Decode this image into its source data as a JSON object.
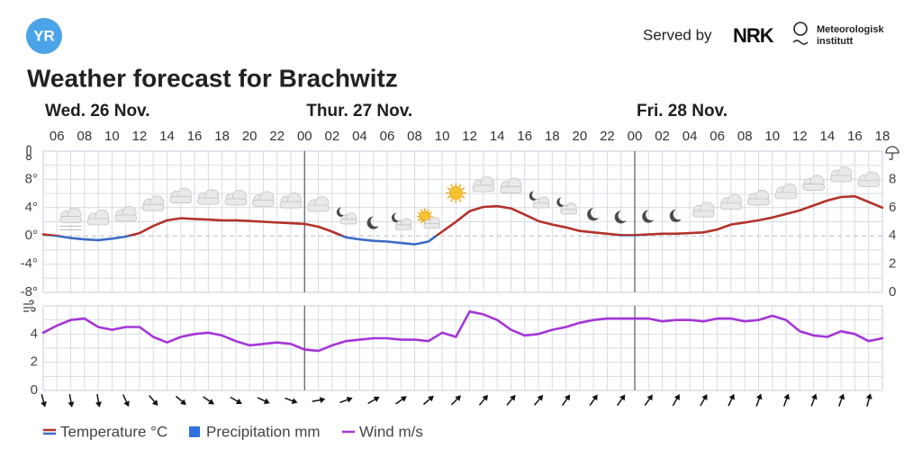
{
  "header": {
    "logo": "YR",
    "served_by": "Served by",
    "nrk": "NRK",
    "met": [
      "Meteorologisk",
      "institutt"
    ]
  },
  "title": "Weather forecast for Brachwitz",
  "days": [
    "Wed. 26 Nov.",
    "Thur. 27 Nov.",
    "Fri. 28 Nov."
  ],
  "chart_data": [
    {
      "type": "line",
      "categories": [
        null,
        "06",
        null,
        "08",
        null,
        "10",
        null,
        "12",
        null,
        "14",
        null,
        "16",
        null,
        "18",
        null,
        "20",
        null,
        "22",
        null,
        "00",
        null,
        "02",
        null,
        "04",
        null,
        "06",
        null,
        "08",
        null,
        "10",
        null,
        "12",
        null,
        "14",
        null,
        "16",
        null,
        "18",
        null,
        "20",
        null,
        "22",
        null,
        "00",
        null,
        "02",
        null,
        "04",
        null,
        "06",
        null,
        "08",
        null,
        "10",
        null,
        "12",
        null,
        "14",
        null,
        "16",
        null,
        "18"
      ],
      "series": [
        {
          "name": "Temperature °C",
          "color": "#b3322a",
          "negative_color": "#3b6cc4",
          "values": [
            0.2,
            0.0,
            -0.3,
            -0.5,
            -0.6,
            -0.4,
            -0.1,
            0.4,
            1.4,
            2.2,
            2.5,
            2.4,
            2.3,
            2.2,
            2.2,
            2.1,
            2.0,
            1.9,
            1.8,
            1.7,
            1.3,
            0.6,
            -0.2,
            -0.5,
            -0.7,
            -0.8,
            -1.0,
            -1.2,
            -0.8,
            0.6,
            2.0,
            3.5,
            4.1,
            4.2,
            3.9,
            3.0,
            2.1,
            1.6,
            1.2,
            0.7,
            0.5,
            0.3,
            0.1,
            0.1,
            0.2,
            0.3,
            0.3,
            0.4,
            0.5,
            0.9,
            1.6,
            1.9,
            2.2,
            2.6,
            3.1,
            3.6,
            4.3,
            5.0,
            5.5,
            5.6,
            4.8,
            4.0
          ]
        },
        {
          "name": "Precipitation mm",
          "color": "#2f6fde",
          "axis": "y2",
          "values": [
            0,
            0,
            0,
            0,
            0,
            0,
            0,
            0,
            0,
            0,
            0,
            0,
            0,
            0,
            0,
            0,
            0,
            0,
            0,
            0,
            0,
            0,
            0,
            0,
            0,
            0,
            0,
            0,
            0,
            0,
            0,
            0,
            0,
            0,
            0,
            0,
            0,
            0,
            0,
            0,
            0,
            0,
            0,
            0,
            0,
            0,
            0,
            0,
            0,
            0,
            0,
            0,
            0,
            0,
            0,
            0,
            0,
            0,
            0,
            0,
            0,
            0
          ]
        }
      ],
      "ylim": [
        -8,
        12
      ],
      "yticks": [
        {
          "value": -8,
          "label": "-8°"
        },
        {
          "value": -4,
          "label": "-4°"
        },
        {
          "value": 0,
          "label": "0°"
        },
        {
          "value": 4,
          "label": "4°"
        },
        {
          "value": 8,
          "label": "8°"
        }
      ],
      "y2lim": [
        0,
        10
      ],
      "y2ticks": [
        0,
        2,
        4,
        6,
        8
      ],
      "grid": true
    },
    {
      "type": "line",
      "series": [
        {
          "name": "Wind m/s",
          "color": "#a436d6",
          "values": [
            4.1,
            4.6,
            5.0,
            5.1,
            4.5,
            4.3,
            4.5,
            4.5,
            3.8,
            3.4,
            3.8,
            4.0,
            4.1,
            3.9,
            3.5,
            3.2,
            3.3,
            3.4,
            3.3,
            2.9,
            2.8,
            3.2,
            3.5,
            3.6,
            3.7,
            3.7,
            3.6,
            3.6,
            3.5,
            4.1,
            3.8,
            5.6,
            5.4,
            5.0,
            4.3,
            3.9,
            4.0,
            4.3,
            4.5,
            4.8,
            5.0,
            5.1,
            5.1,
            5.1,
            5.1,
            4.9,
            5.0,
            5.0,
            4.9,
            5.1,
            5.1,
            4.9,
            5.0,
            5.3,
            5.0,
            4.2,
            3.9,
            3.8,
            4.2,
            4.0,
            3.5,
            3.7
          ]
        }
      ],
      "ylim": [
        0,
        6
      ],
      "yticks": [
        0,
        2,
        4
      ],
      "grid": true
    }
  ]
}
